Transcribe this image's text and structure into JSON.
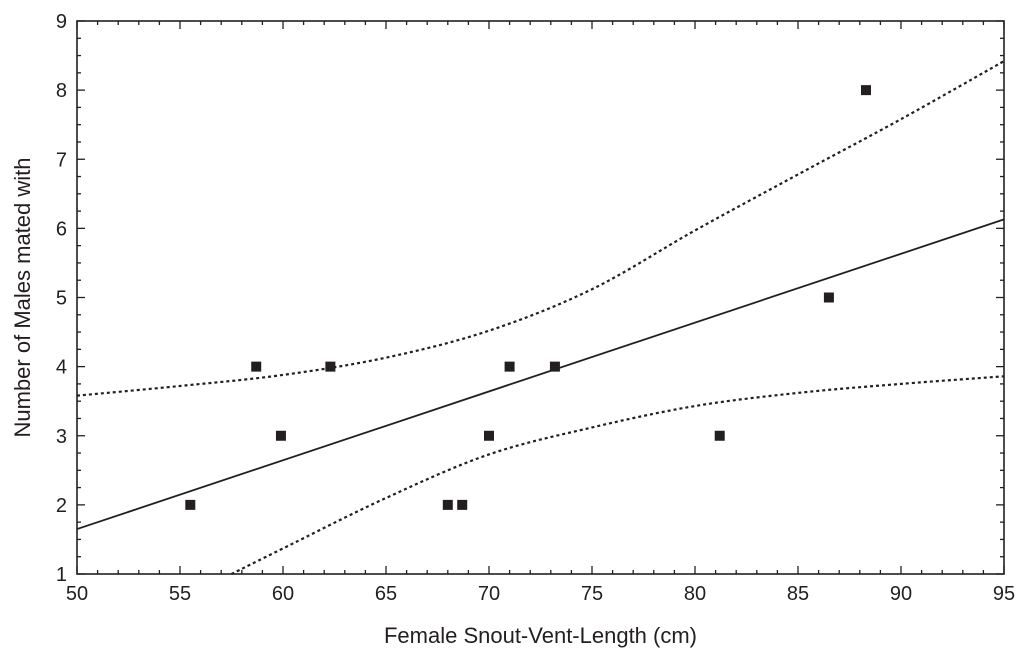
{
  "chart_data": {
    "type": "scatter",
    "title": "",
    "xlabel": "Female Snout-Vent-Length (cm)",
    "ylabel": "Number of Males mated with",
    "xlim": [
      50,
      95
    ],
    "ylim": [
      1,
      9
    ],
    "x_ticks": [
      "50",
      "55",
      "60",
      "65",
      "70",
      "75",
      "80",
      "85",
      "90",
      "95"
    ],
    "y_ticks": [
      "1",
      "2",
      "3",
      "4",
      "5",
      "6",
      "7",
      "8",
      "9"
    ],
    "grid": false,
    "legend": "none",
    "colors": {
      "marker": "#231f20",
      "line": "#231f20"
    },
    "points": [
      {
        "x": 55.5,
        "y": 2
      },
      {
        "x": 58.7,
        "y": 4
      },
      {
        "x": 59.9,
        "y": 3
      },
      {
        "x": 62.3,
        "y": 4
      },
      {
        "x": 68.0,
        "y": 2
      },
      {
        "x": 68.7,
        "y": 2
      },
      {
        "x": 70.0,
        "y": 3
      },
      {
        "x": 71.0,
        "y": 4
      },
      {
        "x": 73.2,
        "y": 4
      },
      {
        "x": 81.2,
        "y": 3
      },
      {
        "x": 86.5,
        "y": 5
      },
      {
        "x": 88.3,
        "y": 8
      }
    ],
    "fit_line": {
      "style": "solid",
      "x": [
        50,
        95
      ],
      "y": [
        1.65,
        6.13
      ]
    },
    "confidence_band": {
      "style": "dotted",
      "upper": {
        "x": [
          50,
          55,
          60,
          65,
          70,
          75,
          80,
          85,
          90,
          95
        ],
        "y": [
          3.58,
          3.72,
          3.88,
          4.13,
          4.52,
          5.12,
          5.97,
          6.78,
          7.58,
          8.42
        ]
      },
      "lower": {
        "x": [
          57.5,
          60,
          65,
          70,
          75,
          80,
          85,
          90,
          95
        ],
        "y": [
          1.0,
          1.37,
          2.1,
          2.73,
          3.12,
          3.43,
          3.62,
          3.75,
          3.86
        ]
      }
    }
  }
}
